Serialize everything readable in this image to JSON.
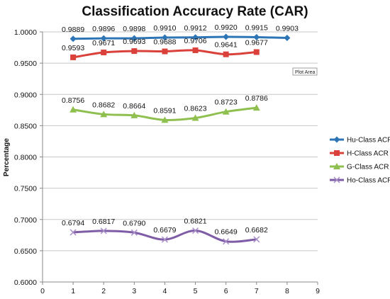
{
  "chart_data": {
    "type": "line",
    "title": "Classification Accuracy Rate (CAR)",
    "xlabel": "",
    "ylabel": "Percentage",
    "xlim": [
      0,
      9
    ],
    "ylim": [
      0.6,
      1.0
    ],
    "x_ticks": [
      0,
      1,
      2,
      3,
      4,
      5,
      6,
      7,
      8,
      9
    ],
    "y_ticks": [
      0.6,
      0.65,
      0.7,
      0.75,
      0.8,
      0.85,
      0.9,
      0.95,
      1.0
    ],
    "grid": "horizontal",
    "legend_position": "right",
    "tooltip": "Plot Area",
    "series": [
      {
        "name": "Hu-Class ACR",
        "color": "#2e75b6",
        "marker": "diamond",
        "x": [
          1,
          2,
          3,
          4,
          5,
          6,
          7,
          8
        ],
        "values": [
          0.9889,
          0.9896,
          0.9898,
          0.991,
          0.9912,
          0.992,
          0.9915,
          0.9903
        ],
        "labels": [
          "0.9889",
          "0.9896",
          "0.9898",
          "0.9910",
          "0.9912",
          "0.9920",
          "0.9915",
          "0.9903"
        ]
      },
      {
        "name": "H-Class ACR",
        "color": "#d9413a",
        "marker": "square",
        "x": [
          1,
          2,
          3,
          4,
          5,
          6,
          7
        ],
        "values": [
          0.9593,
          0.9671,
          0.9693,
          0.9688,
          0.9706,
          0.9641,
          0.9677
        ],
        "labels": [
          "0.9593",
          "0.9671",
          "0.9693",
          "0.9688",
          "0.9706",
          "0.9641",
          "0.9677"
        ]
      },
      {
        "name": "G-Class ACR",
        "color": "#8fc04f",
        "marker": "triangle",
        "x": [
          1,
          2,
          3,
          4,
          5,
          6,
          7
        ],
        "values": [
          0.8756,
          0.8682,
          0.8664,
          0.8591,
          0.8623,
          0.8723,
          0.8786
        ],
        "labels": [
          "0.8756",
          "0.8682",
          "0.8664",
          "0.8591",
          "0.8623",
          "0.8723",
          "0.8786"
        ]
      },
      {
        "name": "Ho-Class ACR",
        "color": "#7e5ca6",
        "marker": "x",
        "x": [
          1,
          2,
          3,
          4,
          5,
          6,
          7
        ],
        "values": [
          0.6794,
          0.6817,
          0.679,
          0.6679,
          0.6821,
          0.6649,
          0.6682
        ],
        "labels": [
          "0.6794",
          "0.6817",
          "0.6790",
          "0.6679",
          "0.6821",
          "0.6649",
          "0.6682"
        ]
      }
    ]
  }
}
